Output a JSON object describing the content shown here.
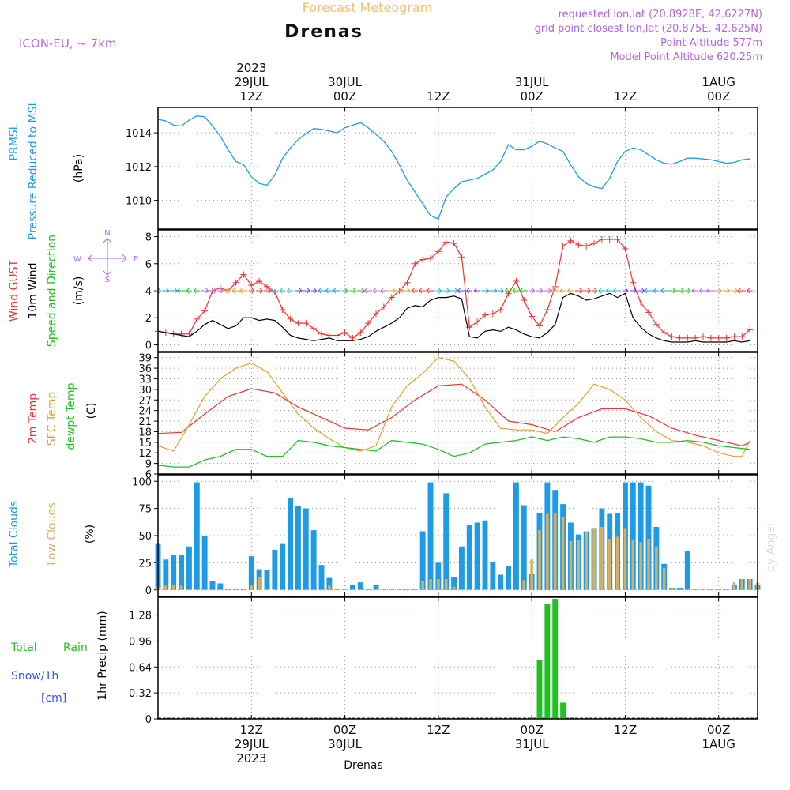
{
  "header": {
    "top_label": "Forecast Meteogram",
    "location": "Drenas",
    "model": "ICON-EU, ~ 7km",
    "requested": "requested lon,lat (20.8928E, 42.6227N)",
    "grid_point": "grid point closest lon,lat (20.875E, 42.625N)",
    "point_alt": "Point Altitude 577m",
    "model_alt": "Model Point Altitude 620.25m",
    "footer_location": "Drenas",
    "credit": "by Angel"
  },
  "colors": {
    "pressure": "#1e9be6",
    "gust": "#ee3333",
    "wind": "#000000",
    "t2m": "#ee3333",
    "sfc": "#e0a030",
    "dewpt": "#22c022",
    "cloud_total": "#1e9be6",
    "cloud_low": "#d4b060",
    "rain": "#22c022",
    "snow": "#3355ee",
    "label_purple": "#b266e0",
    "label_orange": "#f0c070"
  },
  "time_axis": {
    "top_ticks": [
      {
        "t": 12,
        "l1": "2023",
        "l2": "29JUL",
        "l3": "12Z"
      },
      {
        "t": 24,
        "l1": "",
        "l2": "30JUL",
        "l3": "00Z"
      },
      {
        "t": 36,
        "l1": "",
        "l2": "",
        "l3": "12Z"
      },
      {
        "t": 48,
        "l1": "",
        "l2": "31JUL",
        "l3": "00Z"
      },
      {
        "t": 60,
        "l1": "",
        "l2": "",
        "l3": "12Z"
      },
      {
        "t": 72,
        "l1": "",
        "l2": "1AUG",
        "l3": "00Z"
      }
    ],
    "bottom_ticks": [
      {
        "t": 12,
        "l1": "12Z",
        "l2": "29JUL",
        "l3": "2023"
      },
      {
        "t": 24,
        "l1": "00Z",
        "l2": "30JUL",
        "l3": ""
      },
      {
        "t": 36,
        "l1": "12Z",
        "l2": "",
        "l3": ""
      },
      {
        "t": 48,
        "l1": "00Z",
        "l2": "31JUL",
        "l3": ""
      },
      {
        "t": 60,
        "l1": "12Z",
        "l2": "",
        "l3": ""
      },
      {
        "t": 72,
        "l1": "00Z",
        "l2": "1AUG",
        "l3": ""
      }
    ]
  },
  "panel_labels": {
    "pressure": {
      "a": "PRMSL",
      "b": "Pressure Reduced to MSL",
      "unit": "(hPa)"
    },
    "wind": {
      "a": "Wind GUST",
      "b": "10m Wind",
      "c": "Speed and Direction",
      "unit": "(m/s)",
      "compass_n": "N",
      "compass_s": "S",
      "compass_w": "W",
      "compass_e": "E"
    },
    "temp": {
      "a": "2m Temp",
      "b": "SFC Temp",
      "c": "dewpt Temp",
      "unit": "(C)"
    },
    "cloud": {
      "a": "Total Clouds",
      "b": "Low Clouds",
      "unit": "(%)"
    },
    "precip": {
      "a": "Total",
      "b": "Rain",
      "c": "Snow/1h",
      "d": "[cm]",
      "unit": "1hr Precip (mm)"
    }
  },
  "chart_data": [
    {
      "type": "line",
      "name": "pressure",
      "x_unit": "hours from 29JUL 00Z",
      "xlim": [
        0,
        77
      ],
      "ylim": [
        1008.3,
        1015.5
      ],
      "yticks": [
        1010,
        1012,
        1014
      ],
      "series": [
        {
          "name": "PRMSL",
          "x": [
            0,
            1,
            2,
            3,
            4,
            5,
            6,
            7,
            8,
            9,
            10,
            11,
            12,
            13,
            14,
            15,
            16,
            17,
            18,
            19,
            20,
            21,
            22,
            23,
            24,
            25,
            26,
            27,
            28,
            29,
            30,
            31,
            32,
            33,
            34,
            35,
            36,
            37,
            38,
            39,
            40,
            41,
            42,
            43,
            44,
            45,
            46,
            47,
            48,
            49,
            50,
            51,
            52,
            53,
            54,
            55,
            56,
            57,
            58,
            59,
            60,
            61,
            62,
            63,
            64,
            65,
            66,
            67,
            68,
            69,
            70,
            71,
            72,
            73,
            74,
            75,
            76
          ],
          "values": [
            1014.8,
            1014.7,
            1014.45,
            1014.4,
            1014.75,
            1015.0,
            1014.95,
            1014.4,
            1013.8,
            1013.0,
            1012.3,
            1012.1,
            1011.4,
            1011.0,
            1010.9,
            1011.5,
            1012.5,
            1013.1,
            1013.6,
            1013.95,
            1014.25,
            1014.2,
            1014.1,
            1014.0,
            1014.3,
            1014.45,
            1014.6,
            1014.3,
            1013.9,
            1013.5,
            1012.9,
            1012.1,
            1011.2,
            1010.5,
            1009.8,
            1009.1,
            1008.9,
            1010.2,
            1010.7,
            1011.1,
            1011.2,
            1011.3,
            1011.55,
            1011.8,
            1012.3,
            1013.3,
            1013.0,
            1013.0,
            1013.2,
            1013.5,
            1013.35,
            1013.1,
            1012.9,
            1012.1,
            1011.4,
            1011.0,
            1010.8,
            1010.7,
            1011.3,
            1012.3,
            1012.9,
            1013.1,
            1013.0,
            1012.7,
            1012.4,
            1012.2,
            1012.15,
            1012.3,
            1012.5,
            1012.5,
            1012.45,
            1012.4,
            1012.3,
            1012.2,
            1012.25,
            1012.4,
            1012.45
          ]
        }
      ]
    },
    {
      "type": "line",
      "name": "wind",
      "xlim": [
        0,
        77
      ],
      "ylim": [
        -0.5,
        8.5
      ],
      "yticks": [
        0,
        2,
        4,
        6,
        8
      ],
      "series": [
        {
          "name": "Wind GUST",
          "x": [
            0,
            1,
            2,
            3,
            4,
            5,
            6,
            7,
            8,
            9,
            10,
            11,
            12,
            13,
            14,
            15,
            16,
            17,
            18,
            19,
            20,
            21,
            22,
            23,
            24,
            25,
            26,
            27,
            28,
            29,
            30,
            31,
            32,
            33,
            34,
            35,
            36,
            37,
            38,
            39,
            40,
            41,
            42,
            43,
            44,
            45,
            46,
            47,
            48,
            49,
            50,
            51,
            52,
            53,
            54,
            55,
            56,
            57,
            58,
            59,
            60,
            61,
            62,
            63,
            64,
            65,
            66,
            67,
            68,
            69,
            70,
            71,
            72,
            73,
            74,
            75,
            76
          ],
          "values": [
            1.0,
            0.9,
            0.8,
            0.8,
            0.8,
            1.9,
            2.5,
            4.0,
            4.2,
            4.0,
            4.6,
            5.2,
            4.4,
            4.7,
            4.3,
            3.9,
            2.6,
            1.9,
            1.6,
            1.6,
            1.2,
            0.8,
            0.7,
            0.7,
            0.9,
            0.5,
            0.9,
            1.6,
            2.3,
            2.8,
            3.5,
            4.0,
            4.6,
            6.0,
            6.3,
            6.4,
            6.9,
            7.6,
            7.5,
            6.5,
            1.3,
            1.7,
            2.2,
            2.3,
            2.6,
            3.8,
            4.7,
            3.3,
            2.1,
            1.4,
            2.6,
            4.3,
            7.3,
            7.7,
            7.4,
            7.3,
            7.5,
            7.8,
            7.8,
            7.8,
            7.1,
            4.6,
            3.1,
            2.4,
            1.5,
            0.9,
            0.6,
            0.5,
            0.5,
            0.5,
            0.6,
            0.5,
            0.5,
            0.5,
            0.6,
            0.6,
            1.1
          ]
        },
        {
          "name": "10m Wind",
          "x": [
            0,
            1,
            2,
            3,
            4,
            5,
            6,
            7,
            8,
            9,
            10,
            11,
            12,
            13,
            14,
            15,
            16,
            17,
            18,
            19,
            20,
            21,
            22,
            23,
            24,
            25,
            26,
            27,
            28,
            29,
            30,
            31,
            32,
            33,
            34,
            35,
            36,
            37,
            38,
            39,
            40,
            41,
            42,
            43,
            44,
            45,
            46,
            47,
            48,
            49,
            50,
            51,
            52,
            53,
            54,
            55,
            56,
            57,
            58,
            59,
            60,
            61,
            62,
            63,
            64,
            65,
            66,
            67,
            68,
            69,
            70,
            71,
            72,
            73,
            74,
            75,
            76
          ],
          "values": [
            1.0,
            0.9,
            0.8,
            0.7,
            0.6,
            1.0,
            1.5,
            1.8,
            1.5,
            1.2,
            1.4,
            2.0,
            2.0,
            1.8,
            1.9,
            1.8,
            1.3,
            0.7,
            0.5,
            0.4,
            0.3,
            0.4,
            0.5,
            0.3,
            0.3,
            0.3,
            0.4,
            0.6,
            1.0,
            1.3,
            1.6,
            2.0,
            2.7,
            2.9,
            2.8,
            3.3,
            3.5,
            3.5,
            3.6,
            3.4,
            0.6,
            0.5,
            1.0,
            1.1,
            1.0,
            1.3,
            1.1,
            0.8,
            0.6,
            0.5,
            0.9,
            1.5,
            3.5,
            3.8,
            3.6,
            3.3,
            3.4,
            3.6,
            3.8,
            3.5,
            3.8,
            2.0,
            1.3,
            0.8,
            0.5,
            0.3,
            0.2,
            0.2,
            0.2,
            0.3,
            0.2,
            0.2,
            0.2,
            0.2,
            0.3,
            0.2,
            0.3
          ]
        }
      ]
    },
    {
      "type": "line",
      "name": "temperature",
      "xlim": [
        0,
        77
      ],
      "ylim": [
        6,
        40.5
      ],
      "yticks": [
        6,
        9,
        12,
        15,
        18,
        21,
        24,
        27,
        30,
        33,
        36,
        39
      ],
      "series": [
        {
          "name": "2m Temp",
          "x": [
            0,
            3,
            6,
            9,
            12,
            15,
            18,
            21,
            24,
            27,
            30,
            33,
            36,
            39,
            42,
            45,
            48,
            51,
            54,
            57,
            60,
            63,
            66,
            69,
            72,
            75,
            76
          ],
          "values": [
            17.5,
            17.8,
            23,
            28,
            30.2,
            29,
            25,
            22,
            19,
            18.5,
            22,
            27,
            31,
            31.5,
            27,
            21,
            20,
            18,
            22,
            24.5,
            24.5,
            22.5,
            19,
            17,
            15.5,
            14,
            15
          ]
        },
        {
          "name": "SFC Temp",
          "x": [
            0,
            2,
            4,
            6,
            8,
            10,
            12,
            14,
            16,
            18,
            20,
            22,
            24,
            26,
            28,
            30,
            32,
            34,
            36,
            38,
            40,
            42,
            44,
            46,
            48,
            50,
            52,
            54,
            56,
            58,
            60,
            62,
            64,
            66,
            68,
            70,
            72,
            74,
            75,
            76
          ],
          "values": [
            14,
            12.5,
            20,
            28,
            33,
            36,
            37.5,
            35,
            29,
            23,
            19,
            16,
            13.5,
            12.5,
            14,
            25,
            31,
            34.5,
            39,
            38,
            33,
            25,
            19,
            18.5,
            18.5,
            17.5,
            22,
            26,
            31.5,
            30,
            27,
            22,
            18,
            15.5,
            15,
            14,
            12,
            11,
            11,
            15.5
          ]
        },
        {
          "name": "dewpt Temp",
          "x": [
            0,
            2,
            4,
            6,
            8,
            10,
            12,
            14,
            16,
            18,
            20,
            22,
            24,
            26,
            28,
            30,
            32,
            34,
            36,
            38,
            40,
            42,
            44,
            46,
            48,
            50,
            52,
            54,
            56,
            58,
            60,
            62,
            64,
            66,
            68,
            70,
            72,
            74,
            76
          ],
          "values": [
            8.5,
            8,
            8,
            10,
            11,
            13,
            13,
            11,
            11,
            15.5,
            15,
            14,
            13.5,
            13,
            12.5,
            15.5,
            15,
            14.5,
            13,
            11,
            12,
            14.5,
            15,
            15.5,
            16.5,
            15.5,
            16.5,
            16,
            15,
            16.5,
            16.5,
            16,
            15,
            15,
            15.5,
            15,
            14,
            13.5,
            13
          ]
        }
      ]
    },
    {
      "type": "bar",
      "name": "clouds",
      "xlim": [
        0,
        77
      ],
      "ylim": [
        -6,
        106
      ],
      "yticks": [
        0,
        25,
        50,
        75,
        100
      ],
      "series": [
        {
          "name": "Total Clouds",
          "values": [
            43,
            28,
            32,
            32,
            40,
            99,
            50,
            8,
            6,
            1,
            1,
            0,
            31,
            19,
            18,
            37,
            43,
            85,
            77,
            75,
            55,
            23,
            11,
            1,
            0,
            5,
            7,
            1,
            5,
            1,
            1,
            1,
            1,
            0,
            54,
            99,
            25,
            89,
            12,
            40,
            60,
            62,
            64,
            26,
            14,
            22,
            99,
            78,
            15,
            71,
            99,
            92,
            79,
            62,
            51,
            54,
            57,
            75,
            70,
            71,
            99,
            99,
            99,
            96,
            58,
            24,
            2,
            2,
            36,
            1,
            1,
            1,
            1,
            1,
            5,
            10,
            10,
            5
          ]
        },
        {
          "name": "Low Clouds",
          "values": [
            3,
            4,
            5,
            4,
            1,
            1,
            1,
            1,
            1,
            1,
            1,
            1,
            4,
            12,
            1,
            1,
            1,
            1,
            1,
            1,
            1,
            1,
            4,
            1,
            1,
            1,
            1,
            1,
            1,
            1,
            1,
            1,
            1,
            0,
            8,
            10,
            10,
            10,
            3,
            1,
            1,
            1,
            1,
            1,
            1,
            1,
            1,
            9,
            28,
            55,
            70,
            71,
            67,
            45,
            46,
            54,
            57,
            58,
            47,
            49,
            57,
            46,
            44,
            47,
            40,
            20,
            2,
            1,
            1,
            1,
            1,
            1,
            1,
            1,
            7,
            10,
            10,
            7
          ]
        }
      ]
    },
    {
      "type": "bar",
      "name": "precipitation",
      "xlim": [
        0,
        77
      ],
      "ylim": [
        0,
        1.5
      ],
      "yticks": [
        0,
        0.32,
        0.64,
        0.96,
        1.28
      ],
      "series": [
        {
          "name": "Total Rain",
          "x": [
            48,
            49,
            50,
            51,
            52
          ],
          "values": [
            0.01,
            0.73,
            1.42,
            1.48,
            0.2
          ]
        }
      ]
    }
  ]
}
